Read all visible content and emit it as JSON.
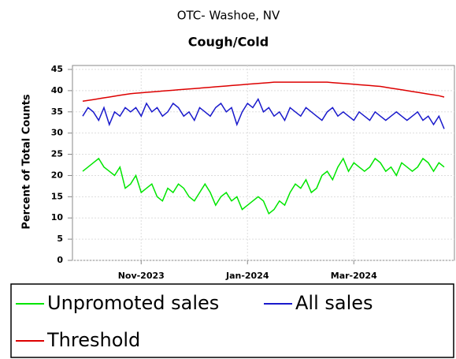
{
  "chart_data": {
    "type": "line",
    "title": "OTC- Washoe, NV",
    "subtitle": "Cough/Cold",
    "y_label": "Percent of Total Counts",
    "categories": [
      null,
      null,
      null,
      null,
      null,
      null,
      null,
      null,
      null,
      null,
      null,
      "Nov-2023",
      null,
      null,
      null,
      null,
      null,
      null,
      null,
      null,
      null,
      null,
      null,
      null,
      null,
      null,
      null,
      null,
      null,
      null,
      null,
      "Jan-2024",
      null,
      null,
      null,
      null,
      null,
      null,
      null,
      null,
      null,
      null,
      null,
      null,
      null,
      null,
      null,
      null,
      null,
      null,
      null,
      "Mar-2024",
      null,
      null,
      null,
      null,
      null,
      null,
      null,
      null,
      null,
      null,
      null,
      null,
      null,
      null,
      null,
      null,
      null
    ],
    "series": [
      {
        "name": "Unpromoted sales",
        "color": "#00e600",
        "values": [
          21,
          22,
          23,
          24,
          22,
          21,
          20,
          22,
          17,
          18,
          20,
          16,
          17,
          18,
          15,
          14,
          17,
          16,
          18,
          17,
          15,
          14,
          16,
          18,
          16,
          13,
          15,
          16,
          14,
          15,
          12,
          13,
          14,
          15,
          14,
          11,
          12,
          14,
          13,
          16,
          18,
          17,
          19,
          16,
          17,
          20,
          21,
          19,
          22,
          24,
          21,
          23,
          22,
          21,
          22,
          24,
          23,
          21,
          22,
          20,
          23,
          22,
          21,
          22,
          24,
          23,
          21,
          23,
          22
        ]
      },
      {
        "name": "All sales",
        "color": "#1a1acc",
        "values": [
          34,
          36,
          35,
          33,
          36,
          32,
          35,
          34,
          36,
          35,
          36,
          34,
          37,
          35,
          36,
          34,
          35,
          37,
          36,
          34,
          35,
          33,
          36,
          35,
          34,
          36,
          37,
          35,
          36,
          32,
          35,
          37,
          36,
          38,
          35,
          36,
          34,
          35,
          33,
          36,
          35,
          34,
          36,
          35,
          34,
          33,
          35,
          36,
          34,
          35,
          34,
          33,
          35,
          34,
          33,
          35,
          34,
          33,
          34,
          35,
          34,
          33,
          34,
          35,
          33,
          34,
          32,
          34,
          31
        ]
      },
      {
        "name": "Threshold",
        "color": "#dd0000",
        "values": [
          37.5,
          37.7,
          37.9,
          38.1,
          38.3,
          38.5,
          38.7,
          38.9,
          39.1,
          39.3,
          39.4,
          39.5,
          39.6,
          39.7,
          39.8,
          39.9,
          40.0,
          40.1,
          40.2,
          40.3,
          40.4,
          40.5,
          40.6,
          40.7,
          40.8,
          40.9,
          41,
          41.1,
          41.2,
          41.3,
          41.4,
          41.5,
          41.6,
          41.7,
          41.8,
          41.9,
          42,
          42,
          42,
          42,
          42,
          42,
          42,
          42,
          42,
          42,
          42,
          41.9,
          41.8,
          41.7,
          41.6,
          41.5,
          41.4,
          41.3,
          41.2,
          41.1,
          41,
          40.8,
          40.6,
          40.4,
          40.2,
          40,
          39.8,
          39.6,
          39.4,
          39.2,
          39,
          38.8,
          38.5
        ]
      }
    ],
    "ylim": [
      0,
      45
    ],
    "yticks": [
      0,
      5,
      10,
      15,
      20,
      25,
      30,
      35,
      40,
      45
    ],
    "grid": true
  }
}
